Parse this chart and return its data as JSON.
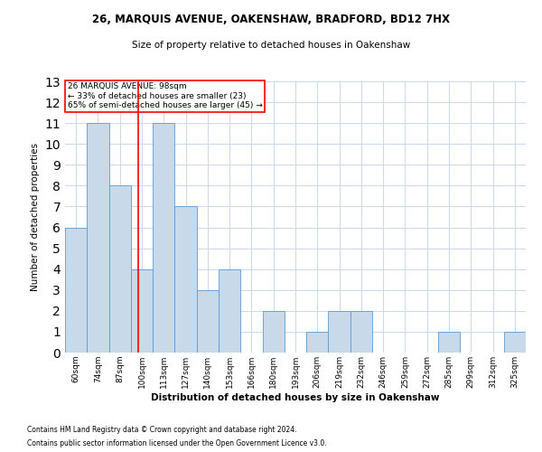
{
  "title1": "26, MARQUIS AVENUE, OAKENSHAW, BRADFORD, BD12 7HX",
  "title2": "Size of property relative to detached houses in Oakenshaw",
  "xlabel": "Distribution of detached houses by size in Oakenshaw",
  "ylabel": "Number of detached properties",
  "footnote1": "Contains HM Land Registry data © Crown copyright and database right 2024.",
  "footnote2": "Contains public sector information licensed under the Open Government Licence v3.0.",
  "annotation_line1": "26 MARQUIS AVENUE: 98sqm",
  "annotation_line2": "← 33% of detached houses are smaller (23)",
  "annotation_line3": "65% of semi-detached houses are larger (45) →",
  "bins": [
    "60sqm",
    "74sqm",
    "87sqm",
    "100sqm",
    "113sqm",
    "127sqm",
    "140sqm",
    "153sqm",
    "166sqm",
    "180sqm",
    "193sqm",
    "206sqm",
    "219sqm",
    "232sqm",
    "246sqm",
    "259sqm",
    "272sqm",
    "285sqm",
    "299sqm",
    "312sqm",
    "325sqm"
  ],
  "values": [
    6,
    11,
    8,
    4,
    11,
    7,
    3,
    4,
    0,
    2,
    0,
    1,
    2,
    2,
    0,
    0,
    0,
    1,
    0,
    0,
    1
  ],
  "bar_color": "#c8d9ea",
  "bar_edge_color": "#5b9bd5",
  "red_line_color": "#ff0000",
  "annotation_box_color": "#ffffff",
  "annotation_box_edge": "#ff0000",
  "ylim": [
    0,
    13
  ],
  "yticks": [
    0,
    1,
    2,
    3,
    4,
    5,
    6,
    7,
    8,
    9,
    10,
    11,
    12,
    13
  ],
  "background_color": "#ffffff",
  "grid_color": "#c8d9ea"
}
